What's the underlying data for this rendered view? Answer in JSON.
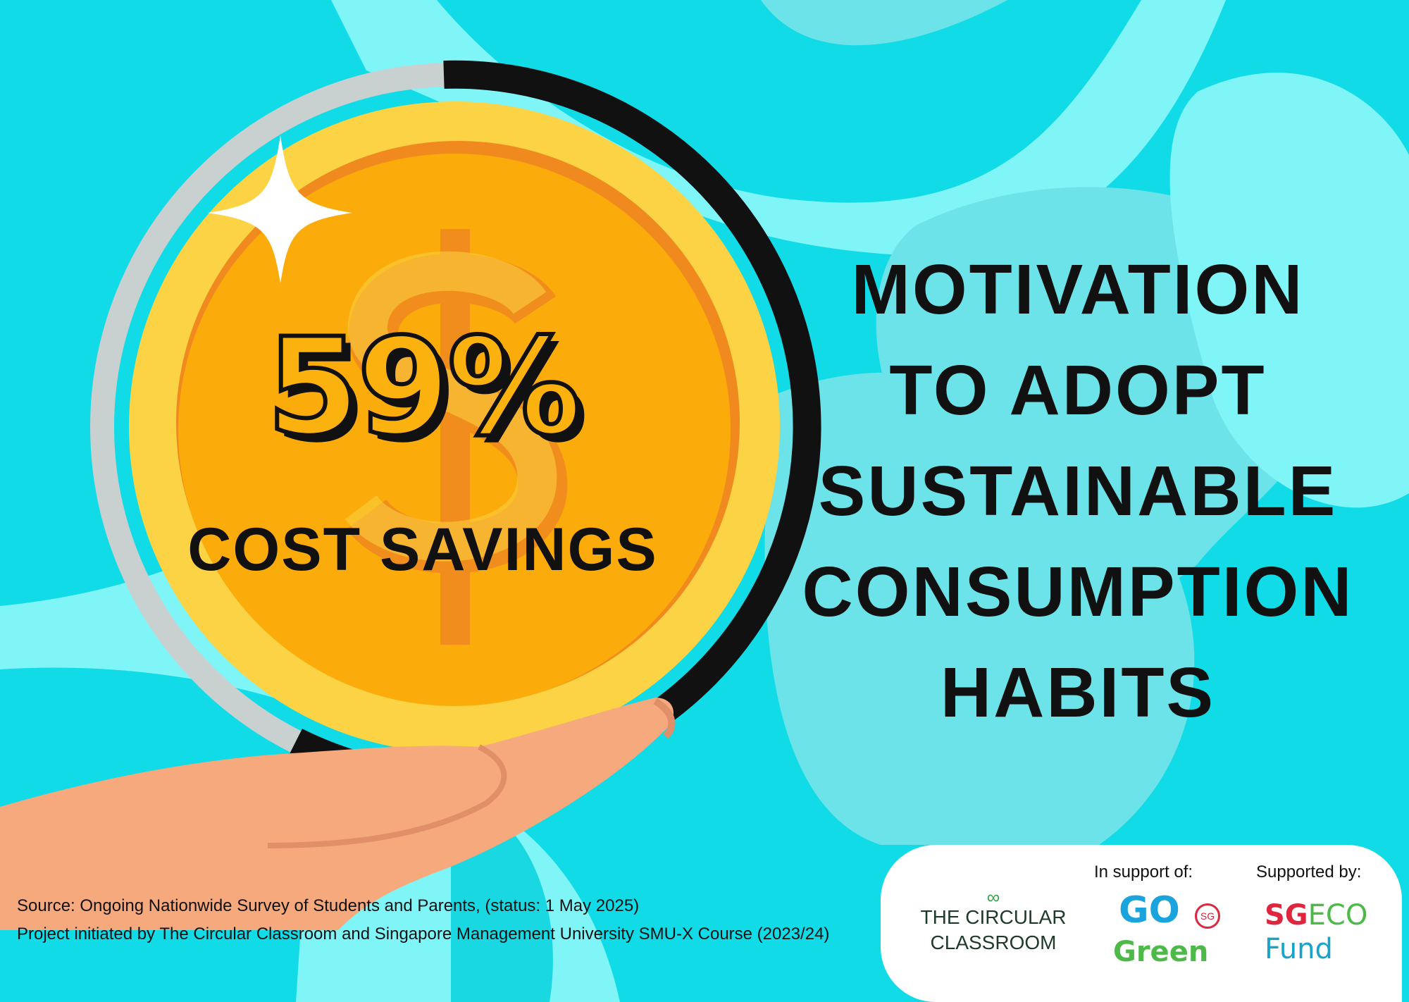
{
  "stat": {
    "value": "59%",
    "fraction": 0.59,
    "label": "COST SAVINGS"
  },
  "title_lines": [
    "MOTIVATION",
    "TO ADOPT",
    "SUSTAINABLE",
    "CONSUMPTION",
    "HABITS"
  ],
  "footer": {
    "source": "Source: Ongoing Nationwide Survey of Students and Parents, (status: 1 May 2025)",
    "project": "Project initiated by The Circular Classroom and Singapore Management University SMU-X Course (2023/24)"
  },
  "logos": {
    "in_support_label": "In support of:",
    "supported_by_label": "Supported by:",
    "circular_classroom": [
      "THE CIRCULAR",
      "CLASSROOM"
    ],
    "go_green": {
      "go": "GO",
      "green": "Green",
      "sg": "SG"
    },
    "sg_eco_fund": {
      "sg": "SG",
      "eco": "ECO",
      "fund": "Fund"
    }
  },
  "colors": {
    "background": "#10dbe6",
    "light_blob": "#80f5f8",
    "coin": "#fbd344",
    "coin_inner": "#fbab0a",
    "ring": "#111111",
    "ring_rest": "#c9d0d0",
    "hand": "#f7a97e"
  }
}
